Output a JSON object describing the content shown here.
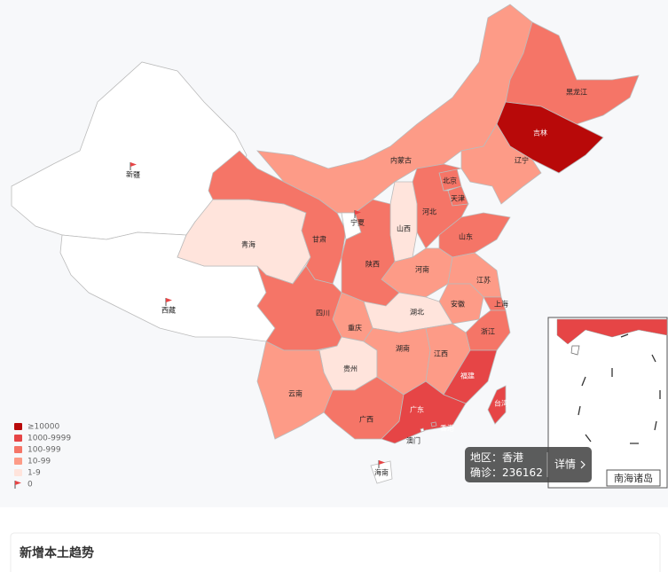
{
  "map": {
    "provinces": [
      {
        "name": "新疆",
        "color": "#ffffff"
      },
      {
        "name": "西藏",
        "color": "#ffffff"
      },
      {
        "name": "青海",
        "color": "#ffe4dc"
      },
      {
        "name": "甘肃",
        "color": "#f57567"
      },
      {
        "name": "内蒙古",
        "color": "#fd9b87"
      },
      {
        "name": "宁夏",
        "color": "#ffffff"
      },
      {
        "name": "黑龙江",
        "color": "#f57567"
      },
      {
        "name": "吉林",
        "color": "#b80909"
      },
      {
        "name": "辽宁",
        "color": "#fd9b87"
      },
      {
        "name": "北京",
        "color": "#f57567"
      },
      {
        "name": "天津",
        "color": "#f57567"
      },
      {
        "name": "河北",
        "color": "#f57567"
      },
      {
        "name": "山西",
        "color": "#ffe4dc"
      },
      {
        "name": "山东",
        "color": "#f57567"
      },
      {
        "name": "河南",
        "color": "#fd9b87"
      },
      {
        "name": "陕西",
        "color": "#f57567"
      },
      {
        "name": "江苏",
        "color": "#fd9b87"
      },
      {
        "name": "安徽",
        "color": "#fd9b87"
      },
      {
        "name": "上海",
        "color": "#f57567"
      },
      {
        "name": "浙江",
        "color": "#f57567"
      },
      {
        "name": "湖北",
        "color": "#ffe4dc"
      },
      {
        "name": "重庆",
        "color": "#fd9b87"
      },
      {
        "name": "四川",
        "color": "#f57567"
      },
      {
        "name": "贵州",
        "color": "#ffe4dc"
      },
      {
        "name": "湖南",
        "color": "#fd9b87"
      },
      {
        "name": "江西",
        "color": "#fd9b87"
      },
      {
        "name": "福建",
        "color": "#e64546"
      },
      {
        "name": "云南",
        "color": "#fd9b87"
      },
      {
        "name": "广西",
        "color": "#f57567"
      },
      {
        "name": "广东",
        "color": "#e64546"
      },
      {
        "name": "台湾",
        "color": "#e64546"
      },
      {
        "name": "海南",
        "color": "#ffffff"
      },
      {
        "name": "香港",
        "color": "#e64546"
      },
      {
        "name": "澳门",
        "color": "#ffffff"
      }
    ],
    "legend": [
      {
        "label": "≥10000",
        "color": "#b80909"
      },
      {
        "label": "1000-9999",
        "color": "#e64546"
      },
      {
        "label": "100-999",
        "color": "#f57567"
      },
      {
        "label": "10-99",
        "color": "#fd9b87"
      },
      {
        "label": "1-9",
        "color": "#ffe4dc"
      },
      {
        "label": "0",
        "color": "#ffffff"
      }
    ],
    "inset_label": "南海诸岛",
    "tooltip": {
      "region_label": "地区：",
      "region": "香港",
      "count_label": "确诊：",
      "count": 236162,
      "button": "详情"
    }
  },
  "section": {
    "title": "新增本土趋势"
  }
}
